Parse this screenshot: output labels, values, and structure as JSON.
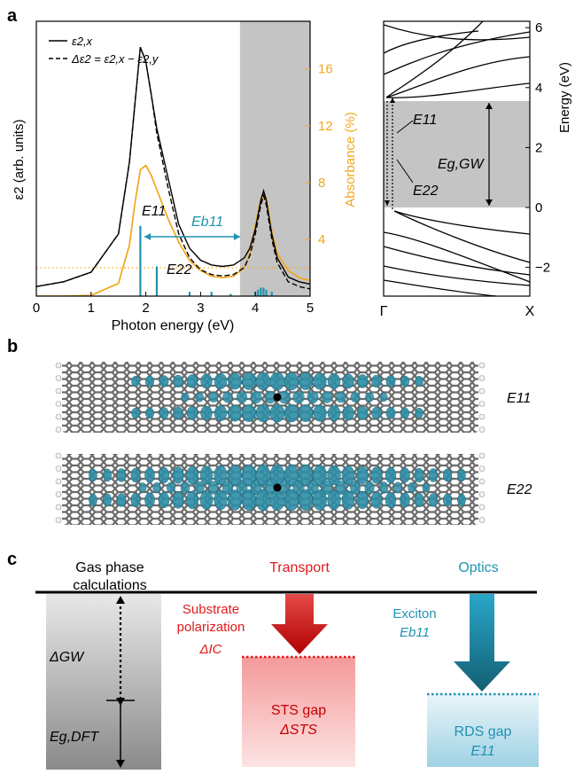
{
  "panel_a": {
    "label": "a",
    "legend": {
      "solid": "ε2,x",
      "dashed": "Δε2 = ε2,x − ε2,y"
    },
    "xlabel": "Photon energy (eV)",
    "ylabel_left": "ε2 (arb. units)",
    "ylabel_right": "Absorbance (%)",
    "x_ticks": [
      "0",
      "1",
      "2",
      "3",
      "4",
      "5"
    ],
    "right_ticks": [
      "4",
      "8",
      "12",
      "16"
    ],
    "annotations": {
      "E11": "E11",
      "E22": "E22",
      "Eb": "Eb11"
    },
    "colors": {
      "absorbance": "#f2a71c",
      "exciton": "#1f93b0",
      "shade": "#c4c4c4"
    }
  },
  "chart_data": [
    {
      "type": "line",
      "title": "",
      "xlabel": "Photon energy (eV)",
      "ylabel": "ε2 (arb. units)",
      "xlim": [
        0,
        5
      ],
      "series": [
        {
          "name": "ε2,x",
          "x": [
            0,
            0.5,
            1.0,
            1.5,
            1.7,
            1.8,
            1.9,
            2.0,
            2.1,
            2.2,
            2.4,
            2.6,
            2.8,
            3.0,
            3.2,
            3.4,
            3.6,
            3.8,
            3.9,
            4.0,
            4.1,
            4.15,
            4.2,
            4.3,
            4.4,
            4.6,
            4.8,
            5.0
          ],
          "y": [
            0.02,
            0.03,
            0.05,
            0.13,
            0.28,
            0.4,
            0.52,
            0.49,
            0.42,
            0.35,
            0.25,
            0.15,
            0.1,
            0.075,
            0.065,
            0.062,
            0.065,
            0.08,
            0.1,
            0.14,
            0.2,
            0.22,
            0.2,
            0.13,
            0.08,
            0.04,
            0.03,
            0.025
          ]
        },
        {
          "name": "Δε2 = ε2,x − ε2,y",
          "x": [
            0,
            0.5,
            1.0,
            1.5,
            1.7,
            1.8,
            1.9,
            2.0,
            2.1,
            2.2,
            2.4,
            2.6,
            2.8,
            3.0,
            3.2,
            3.4,
            3.6,
            3.8,
            3.9,
            4.0,
            4.1,
            4.15,
            4.2,
            4.3,
            4.4,
            4.6,
            4.8,
            5.0
          ],
          "y": [
            0.02,
            0.03,
            0.05,
            0.13,
            0.28,
            0.4,
            0.52,
            0.49,
            0.42,
            0.34,
            0.23,
            0.13,
            0.08,
            0.055,
            0.045,
            0.042,
            0.045,
            0.06,
            0.085,
            0.13,
            0.19,
            0.21,
            0.19,
            0.12,
            0.07,
            0.03,
            0.02,
            0.015
          ]
        }
      ]
    },
    {
      "type": "line",
      "xlabel": "Photon energy (eV)",
      "ylabel": "Absorbance (%)",
      "ylim": [
        0,
        18
      ],
      "series": [
        {
          "name": "Absorbance",
          "x": [
            0,
            0.5,
            1.0,
            1.5,
            1.7,
            1.8,
            1.9,
            2.0,
            2.1,
            2.2,
            2.4,
            2.6,
            2.8,
            3.0,
            3.2,
            3.4,
            3.6,
            3.8,
            3.9,
            4.0,
            4.1,
            4.15,
            4.2,
            4.3,
            4.4,
            4.6,
            4.8,
            5.0
          ],
          "y": [
            0,
            0,
            0.05,
            0.9,
            3.6,
            6.5,
            8.9,
            9.2,
            8.5,
            7.5,
            5.5,
            3.8,
            2.5,
            1.8,
            1.4,
            1.3,
            1.4,
            2.0,
            3.0,
            5.0,
            6.9,
            7.2,
            6.9,
            4.6,
            3.0,
            1.8,
            1.3,
            1.1
          ]
        }
      ]
    },
    {
      "type": "bar",
      "name": "exciton oscillator strengths",
      "x": [
        1.9,
        2.2,
        2.8,
        3.2,
        3.55,
        4.0,
        4.05,
        4.1,
        4.15,
        4.2,
        4.3
      ],
      "values": [
        0.33,
        0.14,
        0.02,
        0.02,
        0.01,
        0.02,
        0.03,
        0.04,
        0.04,
        0.03,
        0.02
      ]
    },
    {
      "type": "line",
      "ylabel": "Energy (eV)",
      "x_ticks": [
        "Γ",
        "X"
      ],
      "ylim": [
        -3,
        6.6
      ],
      "y_ticks": [
        "−2",
        "0",
        "2",
        "4",
        "6"
      ],
      "gap_region": [
        0,
        3.7
      ],
      "annotations": [
        "E11",
        "E22",
        "Eg,GW"
      ]
    }
  ],
  "panel_b": {
    "label": "b",
    "rows": [
      {
        "label": "E11"
      },
      {
        "label": "E22"
      }
    ]
  },
  "panel_c": {
    "label": "c",
    "gas": {
      "title_line1": "Gas phase",
      "title_line2": "calculations",
      "delta_gw": "ΔGW",
      "eg_dft": "Eg,DFT"
    },
    "transport": {
      "title": "Transport",
      "sub1": "Substrate",
      "sub2": "polarization",
      "delta_ic": "ΔIC",
      "gap1": "STS gap",
      "gap2": "ΔSTS"
    },
    "optics": {
      "title": "Optics",
      "sub1": "Exciton",
      "sub2": "Eb11",
      "gap1": "RDS gap",
      "gap2": "E11"
    },
    "colors": {
      "transport": "#e01a1a",
      "optics": "#1f93b0"
    }
  }
}
